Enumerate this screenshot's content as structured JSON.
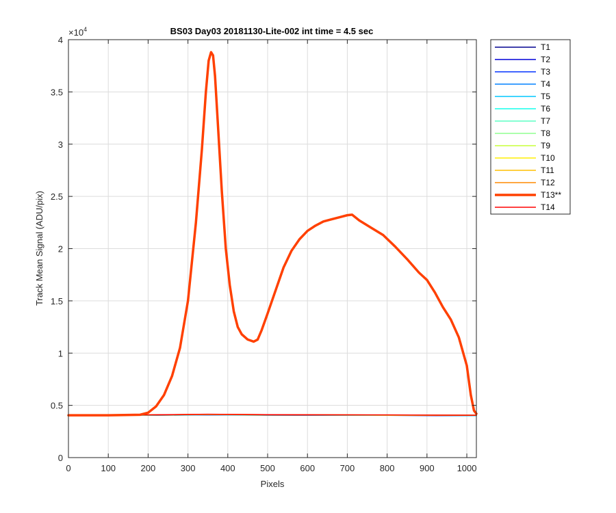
{
  "chart_data": {
    "type": "line",
    "title": "BS03 Day03 20181130-Lite-002 int time = 4.5 sec",
    "xlabel": "Pixels",
    "ylabel": "Track Mean Signal (ADU/pix)",
    "y_exponent_label": "×10",
    "y_exponent_power": "4",
    "xlim": [
      0,
      1024
    ],
    "ylim": [
      0,
      40000
    ],
    "grid": true,
    "legend_position": "outside-top-right",
    "x_ticks": [
      0,
      100,
      200,
      300,
      400,
      500,
      600,
      700,
      800,
      900,
      1000
    ],
    "x_tick_labels": [
      "0",
      "100",
      "200",
      "300",
      "400",
      "500",
      "600",
      "700",
      "800",
      "900",
      "1000"
    ],
    "y_ticks": [
      0,
      5000,
      10000,
      15000,
      20000,
      25000,
      30000,
      35000,
      40000
    ],
    "y_tick_labels": [
      "0",
      "0.5",
      "1",
      "1.5",
      "2",
      "2.5",
      "3",
      "3.5",
      "4"
    ],
    "series": [
      {
        "name": "T1",
        "color": "#00008f",
        "width": 1.5,
        "x": [
          0,
          200,
          350,
          500,
          800,
          1024
        ],
        "values": [
          4050,
          4050,
          4080,
          4060,
          4040,
          4020
        ]
      },
      {
        "name": "T2",
        "color": "#0000d9",
        "width": 1.5,
        "x": [
          0,
          200,
          350,
          500,
          800,
          1024
        ],
        "values": [
          4050,
          4050,
          4090,
          4060,
          4040,
          4020
        ]
      },
      {
        "name": "T3",
        "color": "#0032ff",
        "width": 1.5,
        "x": [
          0,
          200,
          350,
          500,
          800,
          1024
        ],
        "values": [
          4050,
          4060,
          4100,
          4070,
          4050,
          4030
        ]
      },
      {
        "name": "T4",
        "color": "#0080ff",
        "width": 1.5,
        "x": [
          0,
          200,
          350,
          500,
          800,
          1024
        ],
        "values": [
          4050,
          4060,
          4100,
          4070,
          4050,
          4030
        ]
      },
      {
        "name": "T5",
        "color": "#00c7ff",
        "width": 1.5,
        "x": [
          0,
          200,
          350,
          500,
          800,
          1024
        ],
        "values": [
          4060,
          4060,
          4110,
          4080,
          4050,
          4030
        ]
      },
      {
        "name": "T6",
        "color": "#13ffeb",
        "width": 1.5,
        "x": [
          0,
          200,
          350,
          500,
          800,
          1024
        ],
        "values": [
          4060,
          4070,
          4110,
          4080,
          4060,
          4030
        ]
      },
      {
        "name": "T7",
        "color": "#5bffc4",
        "width": 1.5,
        "x": [
          0,
          200,
          350,
          500,
          800,
          1024
        ],
        "values": [
          4060,
          4070,
          4120,
          4080,
          4060,
          4040
        ]
      },
      {
        "name": "T8",
        "color": "#8fff8f",
        "width": 1.5,
        "x": [
          0,
          200,
          350,
          500,
          800,
          1024
        ],
        "values": [
          4070,
          4070,
          4120,
          4090,
          4060,
          4040
        ]
      },
      {
        "name": "T9",
        "color": "#c7ff38",
        "width": 1.5,
        "x": [
          0,
          200,
          350,
          500,
          800,
          1024
        ],
        "values": [
          4070,
          4080,
          4130,
          4090,
          4070,
          4040
        ]
      },
      {
        "name": "T10",
        "color": "#ffef00",
        "width": 1.5,
        "x": [
          0,
          200,
          350,
          500,
          800,
          1024
        ],
        "values": [
          4070,
          4080,
          4130,
          4100,
          4070,
          4050
        ]
      },
      {
        "name": "T11",
        "color": "#ffbf00",
        "width": 1.5,
        "x": [
          0,
          200,
          350,
          500,
          800,
          1024
        ],
        "values": [
          4080,
          4080,
          4140,
          4100,
          4070,
          4050
        ]
      },
      {
        "name": "T12",
        "color": "#ff8a00",
        "width": 1.5,
        "x": [
          0,
          200,
          350,
          500,
          800,
          1024
        ],
        "values": [
          4080,
          4090,
          4140,
          4100,
          4080,
          4050
        ]
      },
      {
        "name": "T13**",
        "color": "#ff4000",
        "width": 3.5,
        "x": [
          0,
          100,
          180,
          200,
          220,
          240,
          260,
          280,
          300,
          320,
          335,
          345,
          352,
          358,
          363,
          368,
          375,
          385,
          395,
          405,
          415,
          425,
          435,
          450,
          465,
          475,
          485,
          500,
          520,
          540,
          560,
          580,
          600,
          620,
          640,
          660,
          680,
          700,
          712,
          730,
          760,
          790,
          820,
          850,
          880,
          900,
          920,
          940,
          960,
          980,
          1000,
          1010,
          1018,
          1024
        ],
        "values": [
          4050,
          4050,
          4100,
          4300,
          4900,
          6000,
          7800,
          10500,
          15000,
          22500,
          29500,
          35000,
          38000,
          38800,
          38500,
          36500,
          32000,
          25500,
          20000,
          16500,
          14000,
          12500,
          11800,
          11300,
          11100,
          11300,
          12200,
          13800,
          16000,
          18200,
          19800,
          20900,
          21700,
          22200,
          22600,
          22800,
          23000,
          23200,
          23250,
          22700,
          22000,
          21300,
          20200,
          19000,
          17700,
          17000,
          15800,
          14400,
          13200,
          11500,
          8800,
          6000,
          4500,
          4200
        ]
      },
      {
        "name": "T14",
        "color": "#ff0000",
        "width": 1.5,
        "x": [
          0,
          200,
          350,
          500,
          800,
          1024
        ],
        "values": [
          4090,
          4090,
          4150,
          4110,
          4080,
          4060
        ]
      }
    ]
  }
}
